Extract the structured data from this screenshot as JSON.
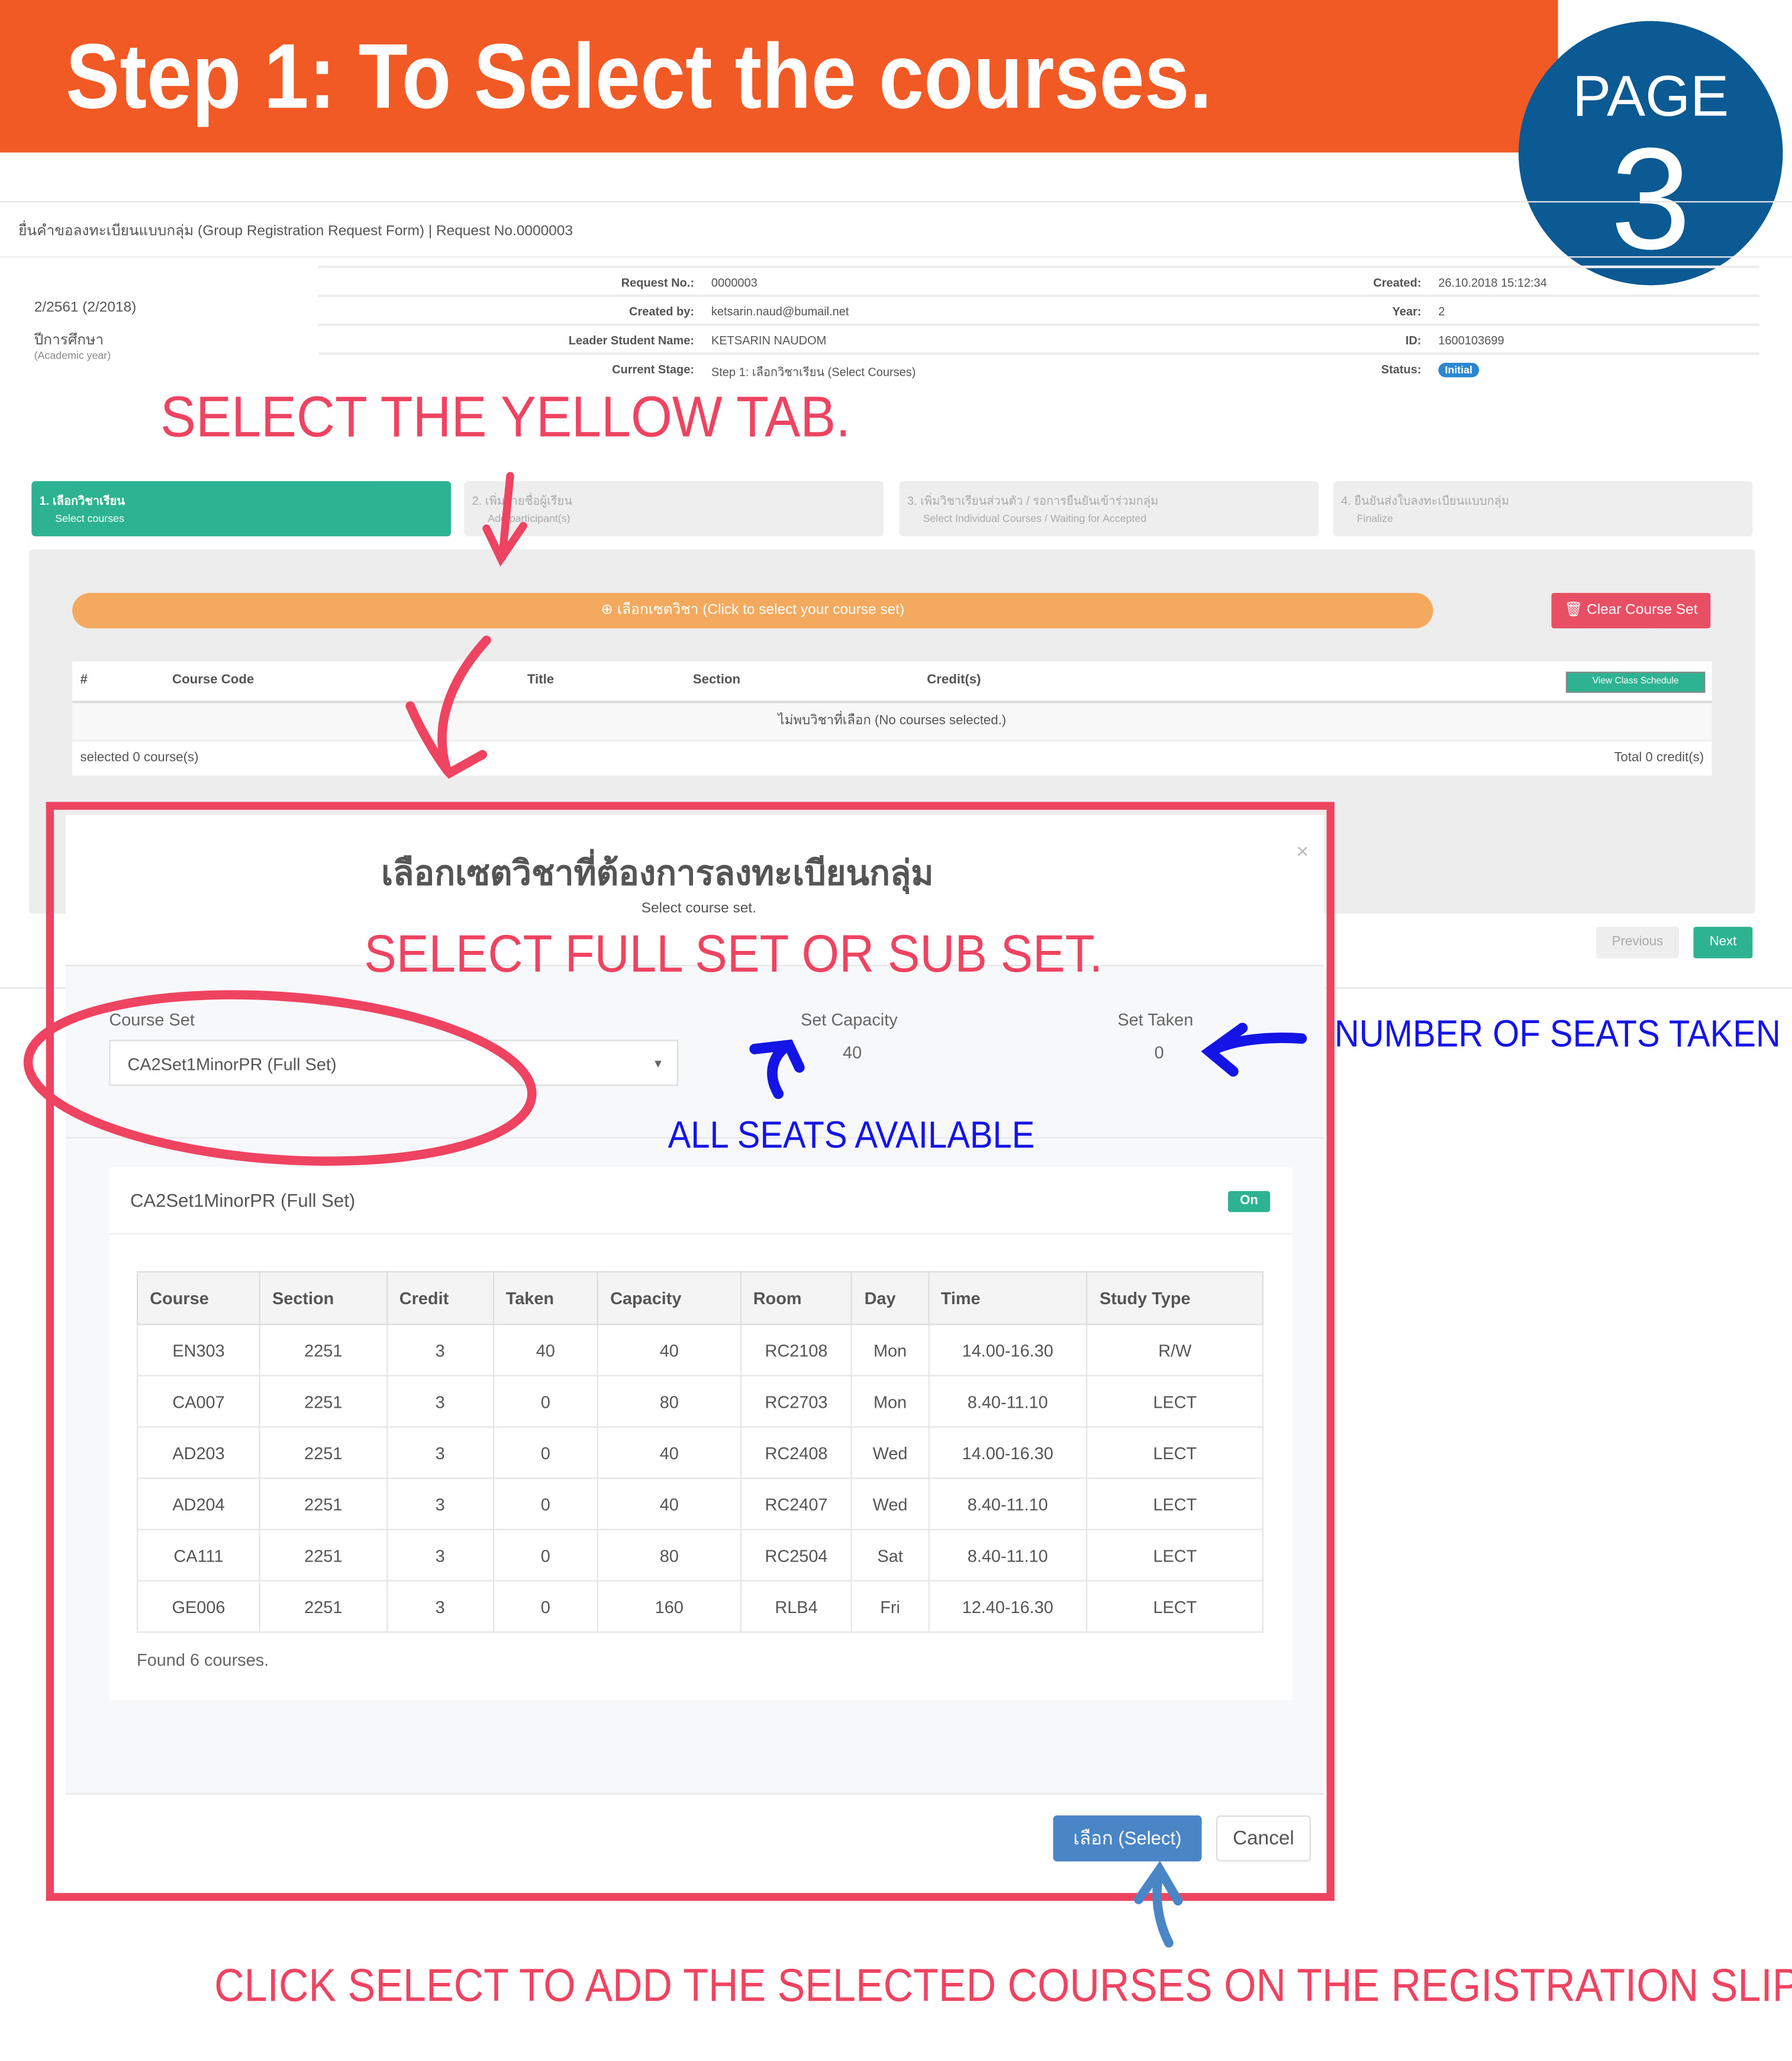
{
  "banner": {
    "title": "Step 1: To Select the courses.",
    "page_label": "PAGE",
    "page_number": "3"
  },
  "page": {
    "header": "ยื่นคำขอลงทะเบียนแบบกลุ่ม (Group Registration Request Form) | Request No.0000003",
    "academic_year_value": "2/2561 (2/2018)",
    "academic_year_label": "ปีการศึกษา",
    "academic_year_sub": "(Academic year)",
    "info": {
      "request_no_label": "Request No.:",
      "request_no": "0000003",
      "created_label": "Created:",
      "created": "26.10.2018 15:12:34",
      "created_by_label": "Created by:",
      "created_by": "ketsarin.naud@bumail.net",
      "year_label": "Year:",
      "year": "2",
      "leader_label": "Leader Student Name:",
      "leader": "KETSARIN NAUDOM",
      "id_label": "ID:",
      "id": "1600103699",
      "stage_label": "Current Stage:",
      "stage": "Step 1: เลือกวิชาเรียน (Select Courses)",
      "status_label": "Status:",
      "status": "Initial"
    },
    "tabs": [
      {
        "title": "1. เลือกวิชาเรียน",
        "sub": "Select courses",
        "active": true
      },
      {
        "title": "2. เพิ่มรายชื่อผู้เรียน",
        "sub": "Add participant(s)",
        "active": false
      },
      {
        "title": "3. เพิ่มวิชาเรียนส่วนตัว / รอการยืนยันเข้าร่วมกลุ่ม",
        "sub": "Select Individual Courses / Waiting for Accepted",
        "active": false
      },
      {
        "title": "4. ยืนยันส่งใบลงทะเบียนแบบกลุ่ม",
        "sub": "Finalize",
        "active": false
      }
    ],
    "select_set_button": "⊕ เลือกเซตวิชา (Click to select your course set)",
    "clear_button": "🗑 Clear Course Set",
    "table_headers": [
      "#",
      "Course Code",
      "Title",
      "Section",
      "Credit(s)"
    ],
    "view_schedule_button": "View Class Schedule",
    "empty_message": "ไม่พบวิชาที่เลือก (No courses selected.)",
    "selected_count": "selected 0 course(s)",
    "total_credits": "Total 0 credit(s)",
    "previous_button": "Previous",
    "next_button": "Next"
  },
  "modal": {
    "title": "เลือกเซตวิชาที่ต้องการลงทะเบียนกลุ่ม",
    "subtitle": "Select course set.",
    "close": "×",
    "course_set_label": "Course Set",
    "course_set_value": "CA2Set1MinorPR (Full Set)",
    "set_capacity_label": "Set Capacity",
    "set_capacity": "40",
    "set_taken_label": "Set Taken",
    "set_taken": "0",
    "panel_title": "CA2Set1MinorPR (Full Set)",
    "on_badge": "On",
    "columns": [
      "Course",
      "Section",
      "Credit",
      "Taken",
      "Capacity",
      "Room",
      "Day",
      "Time",
      "Study Type"
    ],
    "rows": [
      [
        "EN303",
        "2251",
        "3",
        "40",
        "40",
        "RC2108",
        "Mon",
        "14.00-16.30",
        "R/W"
      ],
      [
        "CA007",
        "2251",
        "3",
        "0",
        "80",
        "RC2703",
        "Mon",
        "8.40-11.10",
        "LECT"
      ],
      [
        "AD203",
        "2251",
        "3",
        "0",
        "40",
        "RC2408",
        "Wed",
        "14.00-16.30",
        "LECT"
      ],
      [
        "AD204",
        "2251",
        "3",
        "0",
        "40",
        "RC2407",
        "Wed",
        "8.40-11.10",
        "LECT"
      ],
      [
        "CA111",
        "2251",
        "3",
        "0",
        "80",
        "RC2504",
        "Sat",
        "8.40-11.10",
        "LECT"
      ],
      [
        "GE006",
        "2251",
        "3",
        "0",
        "160",
        "RLB4",
        "Fri",
        "12.40-16.30",
        "LECT"
      ]
    ],
    "found": "Found 6 courses.",
    "select_button": "เลือก (Select)",
    "cancel_button": "Cancel"
  },
  "annotations": {
    "yellow_tab": "SELECT THE YELLOW TAB.",
    "full_set": "SELECT FULL SET OR SUB SET.",
    "seats_taken": "NUMBER OF SEATS TAKEN",
    "seats_available": "ALL SEATS AVAILABLE",
    "click_select": "CLICK SELECT TO ADD THE SELECTED COURSES ON THE REGISTRATION SLIP."
  },
  "colors": {
    "banner": "#f15a24",
    "circle": "#0b5a94",
    "annotation_red": "#ef4461",
    "annotation_blue": "#1414e6",
    "active_tab": "#2db391",
    "yellow_button": "#f4aa5e"
  }
}
